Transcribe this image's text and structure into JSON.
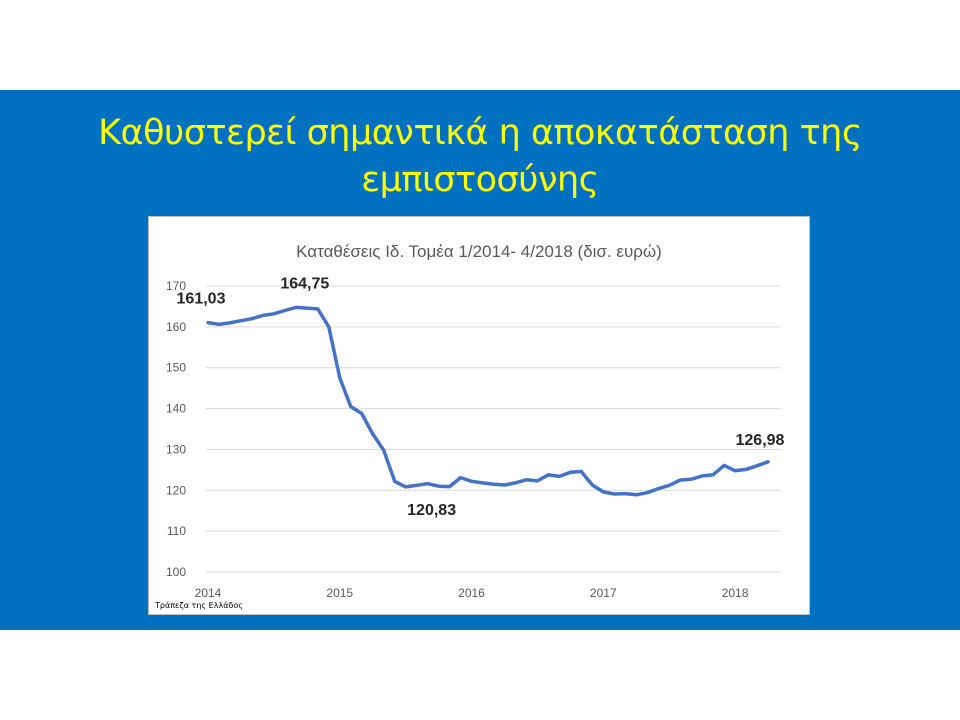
{
  "slide": {
    "title_line1": "Καθυστερεί σημαντικά η αποκατάσταση της",
    "title_line2": "εμπιστοσύνης",
    "source": "Τράπεζα της Ελλάδος"
  },
  "colors": {
    "band": "#0070C0",
    "title": "#FFFF00",
    "line": "#4472C4",
    "grid": "#d9d9d9"
  },
  "chart_data": {
    "type": "line",
    "title": "Καταθέσεις Ιδ. Τομέα 1/2014- 4/2018 (δισ. ευρώ)",
    "xlabel": "",
    "ylabel": "",
    "ylim": [
      100,
      170
    ],
    "yticks": [
      100,
      110,
      120,
      130,
      140,
      150,
      160,
      170
    ],
    "grid": true,
    "xticks": [
      {
        "label": "2014",
        "index": 0
      },
      {
        "label": "2015",
        "index": 12
      },
      {
        "label": "2016",
        "index": 24
      },
      {
        "label": "2017",
        "index": 36
      },
      {
        "label": "2018",
        "index": 48
      }
    ],
    "series": [
      {
        "values": [
          161.03,
          160.6,
          161.0,
          161.5,
          162.0,
          162.8,
          163.2,
          164.0,
          164.75,
          164.6,
          164.4,
          160.0,
          147.5,
          140.5,
          138.8,
          133.8,
          129.8,
          122.2,
          120.83,
          121.2,
          121.6,
          121.0,
          120.9,
          123.1,
          122.2,
          121.8,
          121.5,
          121.3,
          121.8,
          122.6,
          122.3,
          123.8,
          123.4,
          124.4,
          124.6,
          121.3,
          119.6,
          119.1,
          119.2,
          118.9,
          119.4,
          120.4,
          121.2,
          122.5,
          122.7,
          123.5,
          123.8,
          126.1,
          124.8,
          125.1,
          126.0,
          126.98
        ]
      }
    ],
    "annotations": [
      {
        "text": "161,03",
        "index": 0
      },
      {
        "text": "164,75",
        "index": 8
      },
      {
        "text": "120,83",
        "index": 18
      },
      {
        "text": "126,98",
        "index": 51
      }
    ]
  }
}
